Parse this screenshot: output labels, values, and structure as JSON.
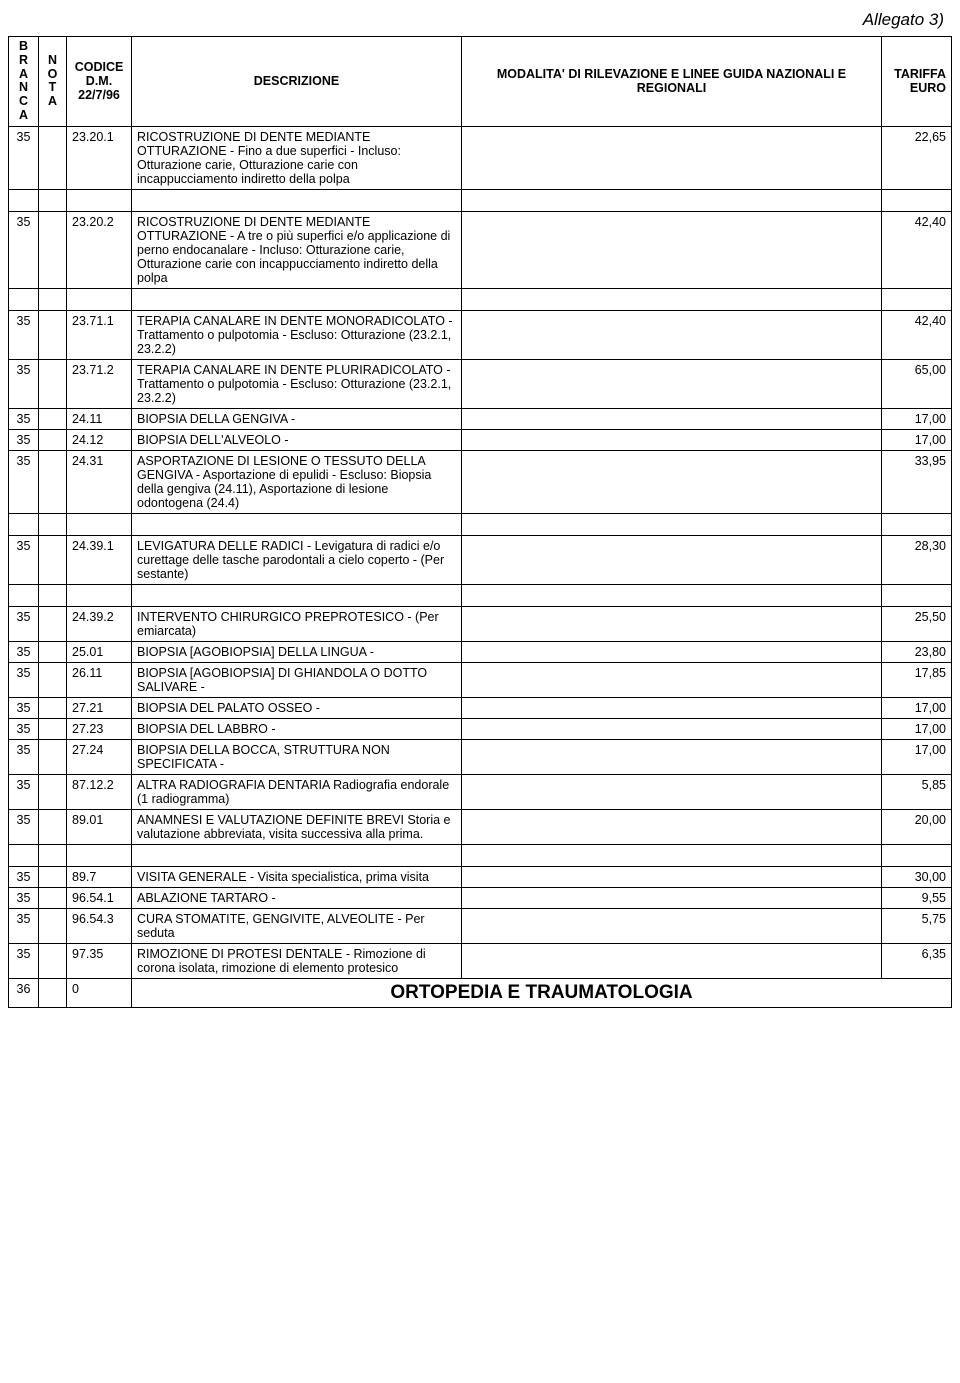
{
  "page_title": "Allegato 3)",
  "headers": {
    "branca": "B\nR\nA\nN\nC\nA",
    "nota": "N\nO\nT\nA",
    "codice": "CODICE D.M. 22/7/96",
    "descrizione": "DESCRIZIONE",
    "modalita": "MODALITA' DI RILEVAZIONE E LINEE GUIDA NAZIONALI E REGIONALI",
    "tariffa": "TARIFFA EURO"
  },
  "groups": [
    {
      "rows": [
        {
          "branca": "35",
          "nota": "",
          "codice": "23.20.1",
          "descr": "RICOSTRUZIONE DI DENTE MEDIANTE OTTURAZIONE - Fino a due superfici - Incluso: Otturazione carie, Otturazione carie con incappucciamento indiretto della polpa",
          "tar": "22,65"
        }
      ]
    },
    {
      "rows": [
        {
          "branca": "35",
          "nota": "",
          "codice": "23.20.2",
          "descr": "RICOSTRUZIONE DI DENTE MEDIANTE OTTURAZIONE - A tre o più superfici e/o applicazione di perno endocanalare - Incluso: Otturazione carie, Otturazione carie con incappucciamento indiretto della polpa",
          "tar": "42,40"
        }
      ]
    },
    {
      "rows": [
        {
          "branca": "35",
          "nota": "",
          "codice": "23.71.1",
          "descr": "TERAPIA CANALARE IN DENTE MONORADICOLATO - Trattamento o pulpotomia  - Escluso: Otturazione (23.2.1, 23.2.2)",
          "tar": "42,40"
        },
        {
          "branca": "35",
          "nota": "",
          "codice": "23.71.2",
          "descr": "TERAPIA CANALARE IN DENTE PLURIRADICOLATO - Trattamento o pulpotomia  - Escluso: Otturazione (23.2.1, 23.2.2)",
          "tar": "65,00"
        },
        {
          "branca": "35",
          "nota": "",
          "codice": "24.11",
          "descr": "BIOPSIA DELLA GENGIVA -",
          "tar": "17,00"
        },
        {
          "branca": "35",
          "nota": "",
          "codice": "24.12",
          "descr": "BIOPSIA DELL'ALVEOLO -",
          "tar": "17,00"
        },
        {
          "branca": "35",
          "nota": "",
          "codice": "24.31",
          "descr": "ASPORTAZIONE DI LESIONE O TESSUTO DELLA GENGIVA - Asportazione di epulidi  - Escluso: Biopsia della gengiva (24.11), Asportazione di lesione odontogena (24.4)",
          "tar": "33,95"
        }
      ]
    },
    {
      "rows": [
        {
          "branca": "35",
          "nota": "",
          "codice": "24.39.1",
          "descr": "LEVIGATURA DELLE RADICI  - Levigatura di radici e/o curettage delle tasche parodontali a cielo coperto - (Per sestante)",
          "tar": "28,30"
        }
      ]
    },
    {
      "rows": [
        {
          "branca": "35",
          "nota": "",
          "codice": "24.39.2",
          "descr": "INTERVENTO CHIRURGICO PREPROTESICO - (Per emiarcata)",
          "tar": "25,50"
        },
        {
          "branca": "35",
          "nota": "",
          "codice": "25.01",
          "descr": "BIOPSIA [AGOBIOPSIA] DELLA LINGUA -",
          "tar": "23,80"
        },
        {
          "branca": "35",
          "nota": "",
          "codice": "26.11",
          "descr": "BIOPSIA [AGOBIOPSIA] DI GHIANDOLA O DOTTO SALIVARE -",
          "tar": "17,85"
        },
        {
          "branca": "35",
          "nota": "",
          "codice": "27.21",
          "descr": "BIOPSIA DEL PALATO OSSEO -",
          "tar": "17,00"
        },
        {
          "branca": "35",
          "nota": "",
          "codice": "27.23",
          "descr": "BIOPSIA DEL LABBRO -",
          "tar": "17,00"
        },
        {
          "branca": "35",
          "nota": "",
          "codice": "27.24",
          "descr": "BIOPSIA DELLA BOCCA, STRUTTURA NON SPECIFICATA -",
          "tar": "17,00"
        },
        {
          "branca": "35",
          "nota": "",
          "codice": "87.12.2",
          "descr": "ALTRA RADIOGRAFIA DENTARIA Radiografia endorale  (1 radiogramma)",
          "tar": "5,85"
        },
        {
          "branca": "35",
          "nota": "",
          "codice": "89.01",
          "descr": "ANAMNESI E VALUTAZIONE DEFINITE BREVI                      Storia e valutazione abbreviata, visita successiva alla prima.",
          "tar": "20,00"
        }
      ]
    },
    {
      "rows": [
        {
          "branca": "35",
          "nota": "",
          "codice": "89.7",
          "descr": "VISITA GENERALE - Visita specialistica, prima visita",
          "tar": "30,00"
        },
        {
          "branca": "35",
          "nota": "",
          "codice": "96.54.1",
          "descr": "ABLAZIONE TARTARO  -",
          "tar": "9,55"
        },
        {
          "branca": "35",
          "nota": "",
          "codice": "96.54.3",
          "descr": "CURA STOMATITE, GENGIVITE, ALVEOLITE - Per seduta",
          "tar": "5,75"
        },
        {
          "branca": "35",
          "nota": "",
          "codice": "97.35",
          "descr": "RIMOZIONE DI PROTESI DENTALE - Rimozione di corona isolata, rimozione di elemento protesico",
          "tar": "6,35"
        }
      ]
    }
  ],
  "section": {
    "branca": "36",
    "nota": "",
    "codice": "0",
    "title": "ORTOPEDIA E TRAUMATOLOGIA"
  }
}
